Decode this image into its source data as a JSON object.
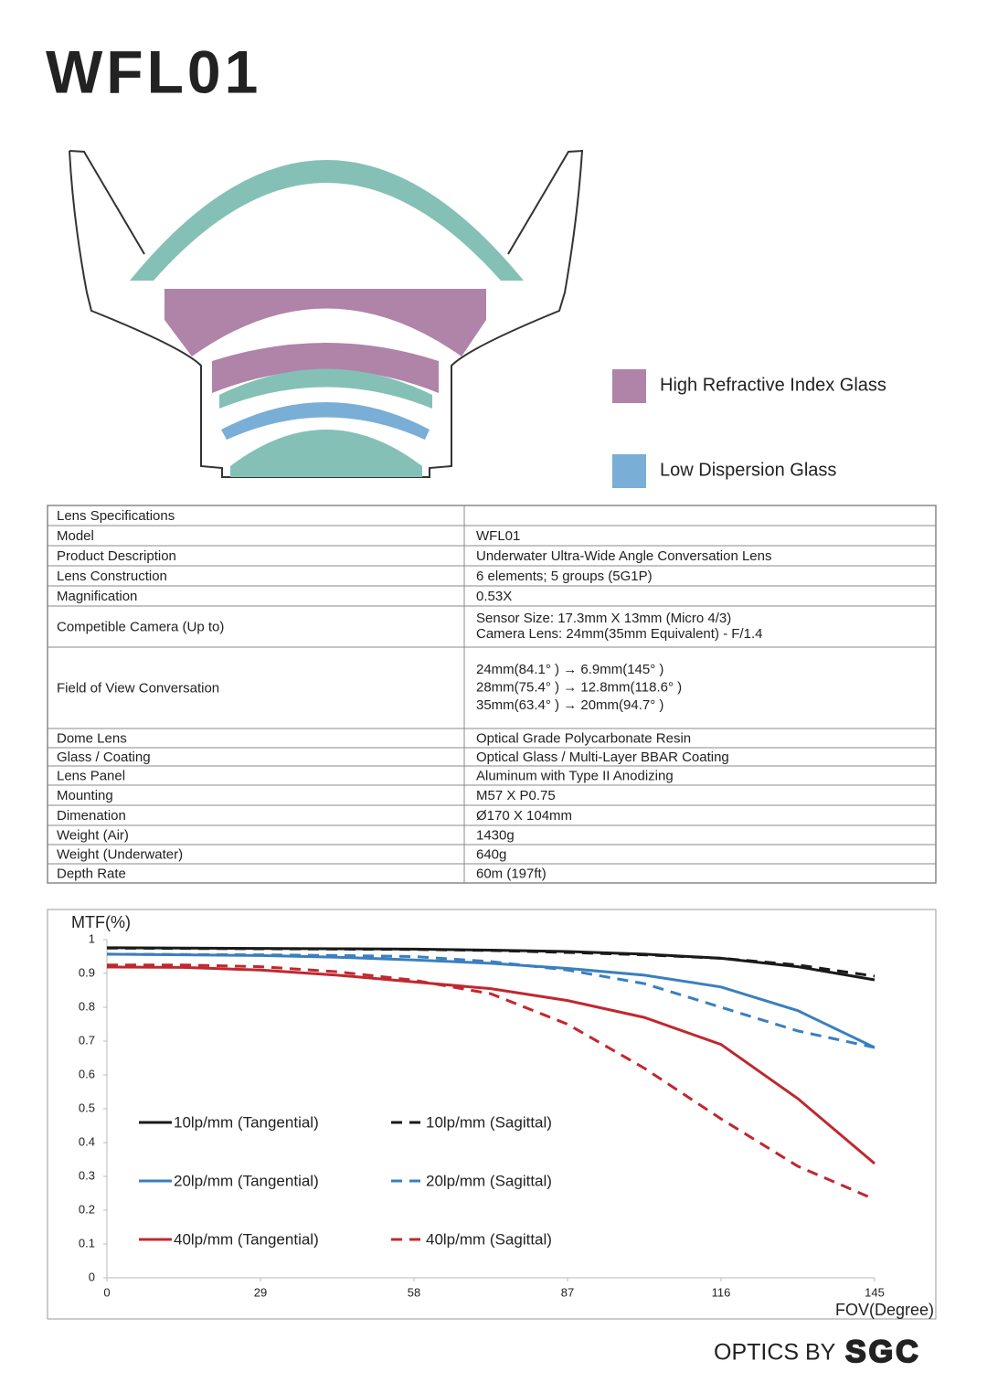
{
  "header": {
    "title": "WFL01"
  },
  "diagram": {
    "legend": [
      "High Refractive Index Glass",
      "Low Dispersion Glass"
    ]
  },
  "table": {
    "rows": [
      [
        "Lens Specifications"
      ],
      [
        "Model",
        "WFL01"
      ],
      [
        "Product Description",
        "Underwater Ultra-Wide Angle Conversation Lens"
      ],
      [
        "Lens Construction",
        "6 elements; 5 groups (5G1P)"
      ],
      [
        "Magnification",
        "0.53X"
      ],
      [
        "Competible Camera (Up to)",
        [
          "Sensor Size: 17.3mm X 13mm (Micro 4/3)",
          "Camera Lens: 24mm(35mm Equivalent) - F/1.4"
        ]
      ],
      [
        "Field of View Conversation",
        [
          "24mm(84.1°  )  →  6.9mm(145°  )",
          "28mm(75.4°  )  →  12.8mm(118.6°  )",
          "35mm(63.4°  )  →  20mm(94.7°  )"
        ]
      ],
      [
        "Dome Lens",
        "Optical Grade Polycarbonate Resin"
      ],
      [
        "Glass / Coating",
        "Optical Glass / Multi-Layer BBAR Coating"
      ],
      [
        "Lens Panel",
        "Aluminum with Type II Anodizing"
      ],
      [
        "Mounting",
        "M57 X P0.75"
      ],
      [
        "Dimenation",
        "Ø170 X 104mm"
      ],
      [
        "Weight (Air)",
        "1430g"
      ],
      [
        "Weight (Underwater)",
        "640g"
      ],
      [
        "Depth Rate",
        "60m (197ft)"
      ]
    ]
  },
  "chart_data": {
    "type": "line",
    "y_label": "MTF(%)",
    "x_label": "FOV(Degree)",
    "x": [
      0,
      14.5,
      29,
      43.5,
      58,
      72.5,
      87,
      101.5,
      116,
      130.5,
      145
    ],
    "xlim": [
      0,
      145
    ],
    "xticks": [
      0,
      29,
      58,
      87,
      116,
      145
    ],
    "ylim": [
      0,
      1
    ],
    "yticks": [
      0,
      0.1,
      0.2,
      0.3,
      0.4,
      0.5,
      0.6,
      0.7,
      0.8,
      0.9,
      1
    ],
    "series": [
      {
        "name": "10lp/mm (Tangential)",
        "color": "#1a1a1a",
        "dashed": false,
        "values": [
          0.976,
          0.975,
          0.974,
          0.973,
          0.972,
          0.969,
          0.965,
          0.957,
          0.945,
          0.92,
          0.881
        ]
      },
      {
        "name": "10lp/mm (Sagittal)",
        "color": "#1a1a1a",
        "dashed": true,
        "values": [
          0.975,
          0.974,
          0.973,
          0.972,
          0.971,
          0.968,
          0.962,
          0.955,
          0.945,
          0.925,
          0.892
        ]
      },
      {
        "name": "20lp/mm (Tangential)",
        "color": "#3a7fbf",
        "dashed": false,
        "values": [
          0.957,
          0.955,
          0.953,
          0.948,
          0.94,
          0.93,
          0.915,
          0.895,
          0.86,
          0.79,
          0.681
        ]
      },
      {
        "name": "20lp/mm (Sagittal)",
        "color": "#3a7fbf",
        "dashed": true,
        "values": [
          0.957,
          0.956,
          0.955,
          0.953,
          0.95,
          0.935,
          0.91,
          0.87,
          0.8,
          0.73,
          0.681
        ]
      },
      {
        "name": "40lp/mm (Tangential)",
        "color": "#c0282e",
        "dashed": false,
        "values": [
          0.919,
          0.918,
          0.91,
          0.895,
          0.875,
          0.855,
          0.82,
          0.77,
          0.69,
          0.53,
          0.338
        ]
      },
      {
        "name": "40lp/mm (Sagittal)",
        "color": "#c0282e",
        "dashed": true,
        "values": [
          0.925,
          0.925,
          0.92,
          0.905,
          0.88,
          0.84,
          0.75,
          0.62,
          0.47,
          0.33,
          0.232
        ]
      }
    ]
  },
  "footer": {
    "brand": "OPTICS BY",
    "logo": "SGC"
  }
}
